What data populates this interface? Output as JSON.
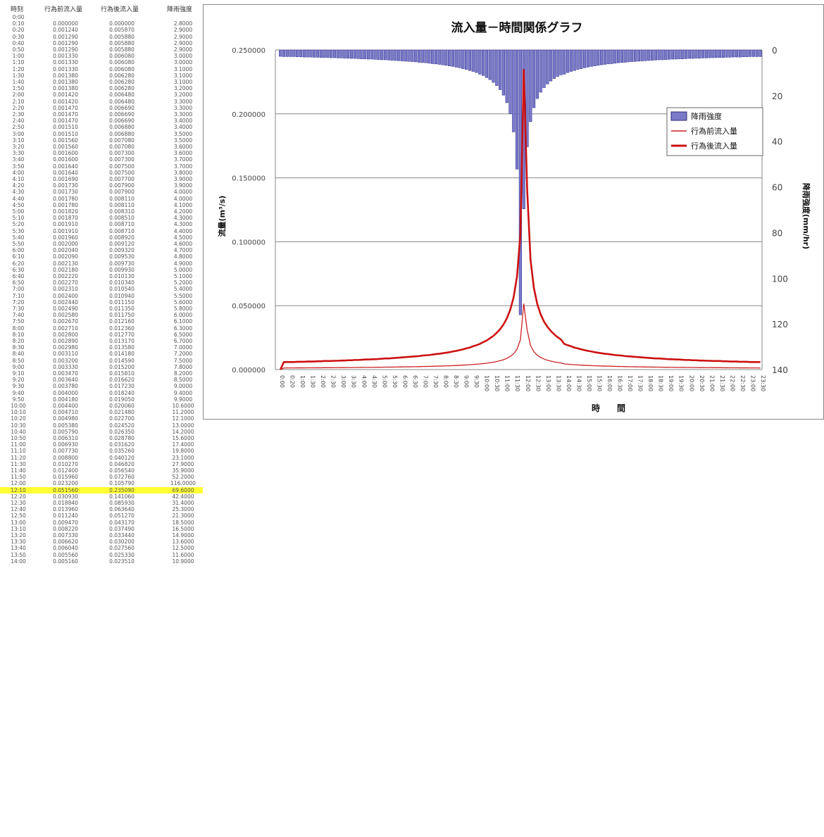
{
  "table": {
    "headers": [
      "時刻",
      "行為前流入量",
      "行為後流入量",
      "降雨強度"
    ],
    "highlight_time": "12:10",
    "rows": [
      [
        "0:00",
        "",
        "",
        ""
      ],
      [
        "0:10",
        "0.000000",
        "0.000000",
        "2.8000"
      ],
      [
        "0:20",
        "0.001240",
        "0.005870",
        "2.9000"
      ],
      [
        "0:30",
        "0.001290",
        "0.005880",
        "2.9000"
      ],
      [
        "0:40",
        "0.001290",
        "0.005880",
        "2.9000"
      ],
      [
        "0:50",
        "0.001290",
        "0.005880",
        "2.9000"
      ],
      [
        "1:00",
        "0.001330",
        "0.006080",
        "3.0000"
      ],
      [
        "1:10",
        "0.001330",
        "0.006080",
        "3.0000"
      ],
      [
        "1:20",
        "0.001330",
        "0.006080",
        "3.1000"
      ],
      [
        "1:30",
        "0.001380",
        "0.006280",
        "3.1000"
      ],
      [
        "1:40",
        "0.001380",
        "0.006280",
        "3.1000"
      ],
      [
        "1:50",
        "0.001380",
        "0.006280",
        "3.2000"
      ],
      [
        "2:00",
        "0.001420",
        "0.006480",
        "3.2000"
      ],
      [
        "2:10",
        "0.001420",
        "0.006480",
        "3.3000"
      ],
      [
        "2:20",
        "0.001470",
        "0.006690",
        "3.3000"
      ],
      [
        "2:30",
        "0.001470",
        "0.006690",
        "3.3000"
      ],
      [
        "2:40",
        "0.001470",
        "0.006690",
        "3.4000"
      ],
      [
        "2:50",
        "0.001510",
        "0.006880",
        "3.4000"
      ],
      [
        "3:00",
        "0.001510",
        "0.006880",
        "3.5000"
      ],
      [
        "3:10",
        "0.001560",
        "0.007080",
        "3.5000"
      ],
      [
        "3:20",
        "0.001560",
        "0.007080",
        "3.6000"
      ],
      [
        "3:30",
        "0.001600",
        "0.007300",
        "3.6000"
      ],
      [
        "3:40",
        "0.001600",
        "0.007300",
        "3.7000"
      ],
      [
        "3:50",
        "0.001640",
        "0.007500",
        "3.7000"
      ],
      [
        "4:00",
        "0.001640",
        "0.007500",
        "3.8000"
      ],
      [
        "4:10",
        "0.001690",
        "0.007700",
        "3.9000"
      ],
      [
        "4:20",
        "0.001730",
        "0.007900",
        "3.9000"
      ],
      [
        "4:30",
        "0.001730",
        "0.007900",
        "4.0000"
      ],
      [
        "4:40",
        "0.001780",
        "0.008110",
        "4.0000"
      ],
      [
        "4:50",
        "0.001780",
        "0.008110",
        "4.1000"
      ],
      [
        "5:00",
        "0.001820",
        "0.008310",
        "4.2000"
      ],
      [
        "5:10",
        "0.001870",
        "0.008510",
        "4.3000"
      ],
      [
        "5:20",
        "0.001910",
        "0.008710",
        "4.3000"
      ],
      [
        "5:30",
        "0.001910",
        "0.008710",
        "4.4000"
      ],
      [
        "5:40",
        "0.001960",
        "0.008920",
        "4.5000"
      ],
      [
        "5:50",
        "0.002000",
        "0.009120",
        "4.6000"
      ],
      [
        "6:00",
        "0.002040",
        "0.009320",
        "4.7000"
      ],
      [
        "6:10",
        "0.002090",
        "0.009530",
        "4.8000"
      ],
      [
        "6:20",
        "0.002130",
        "0.009730",
        "4.9000"
      ],
      [
        "6:30",
        "0.002180",
        "0.009930",
        "5.0000"
      ],
      [
        "6:40",
        "0.002220",
        "0.010130",
        "5.1000"
      ],
      [
        "6:50",
        "0.002270",
        "0.010340",
        "5.2000"
      ],
      [
        "7:00",
        "0.002310",
        "0.010540",
        "5.4000"
      ],
      [
        "7:10",
        "0.002400",
        "0.010940",
        "5.5000"
      ],
      [
        "7:20",
        "0.002440",
        "0.011150",
        "5.6000"
      ],
      [
        "7:30",
        "0.002490",
        "0.011350",
        "5.8000"
      ],
      [
        "7:40",
        "0.002580",
        "0.011750",
        "6.0000"
      ],
      [
        "7:50",
        "0.002670",
        "0.012160",
        "6.1000"
      ],
      [
        "8:00",
        "0.002710",
        "0.012360",
        "6.3000"
      ],
      [
        "8:10",
        "0.002800",
        "0.012770",
        "6.5000"
      ],
      [
        "8:20",
        "0.002890",
        "0.013170",
        "6.7000"
      ],
      [
        "8:30",
        "0.002980",
        "0.013580",
        "7.0000"
      ],
      [
        "8:40",
        "0.003110",
        "0.014180",
        "7.2000"
      ],
      [
        "8:50",
        "0.003200",
        "0.014590",
        "7.5000"
      ],
      [
        "9:00",
        "0.003330",
        "0.015200",
        "7.8000"
      ],
      [
        "9:10",
        "0.003470",
        "0.015810",
        "8.2000"
      ],
      [
        "9:20",
        "0.003640",
        "0.016620",
        "8.5000"
      ],
      [
        "9:30",
        "0.003780",
        "0.017230",
        "9.0000"
      ],
      [
        "9:40",
        "0.004000",
        "0.018240",
        "9.4000"
      ],
      [
        "9:50",
        "0.004180",
        "0.019050",
        "9.9000"
      ],
      [
        "10:00",
        "0.004400",
        "0.020060",
        "10.6000"
      ],
      [
        "10:10",
        "0.004710",
        "0.021480",
        "11.2000"
      ],
      [
        "10:20",
        "0.004980",
        "0.022700",
        "12.1000"
      ],
      [
        "10:30",
        "0.005380",
        "0.024520",
        "13.0000"
      ],
      [
        "10:40",
        "0.005790",
        "0.026350",
        "14.2000"
      ],
      [
        "10:50",
        "0.006310",
        "0.028780",
        "15.6000"
      ],
      [
        "11:00",
        "0.006930",
        "0.031620",
        "17.4000"
      ],
      [
        "11:10",
        "0.007730",
        "0.035260",
        "19.8000"
      ],
      [
        "11:20",
        "0.008800",
        "0.040120",
        "23.1000"
      ],
      [
        "11:30",
        "0.010270",
        "0.046820",
        "27.9000"
      ],
      [
        "11:40",
        "0.012400",
        "0.056540",
        "35.9000"
      ],
      [
        "11:50",
        "0.015960",
        "0.072760",
        "52.2000"
      ],
      [
        "12:00",
        "0.023200",
        "0.105790",
        "116.0000"
      ],
      [
        "12:10",
        "0.051560",
        "0.235090",
        "69.6000"
      ],
      [
        "12:20",
        "0.030930",
        "0.141060",
        "42.4000"
      ],
      [
        "12:30",
        "0.018840",
        "0.085930",
        "31.4000"
      ],
      [
        "12:40",
        "0.013960",
        "0.063640",
        "25.3000"
      ],
      [
        "12:50",
        "0.011240",
        "0.051270",
        "21.3000"
      ],
      [
        "13:00",
        "0.009470",
        "0.043170",
        "18.5000"
      ],
      [
        "13:10",
        "0.008220",
        "0.037490",
        "16.5000"
      ],
      [
        "13:20",
        "0.007330",
        "0.033440",
        "14.9000"
      ],
      [
        "13:30",
        "0.006620",
        "0.030200",
        "13.6000"
      ],
      [
        "13:40",
        "0.006040",
        "0.027560",
        "12.5000"
      ],
      [
        "13:50",
        "0.005560",
        "0.025330",
        "11.6000"
      ],
      [
        "14:00",
        "0.005160",
        "0.023510",
        "10.9000"
      ]
    ]
  },
  "chart_data": {
    "type": "bar+line",
    "title": "流入量－時間関係グラフ",
    "xlabel": "時　　間",
    "ylabel": "流量(m³/s)",
    "y2label": "降雨強度(mm/hr)",
    "ylim": [
      0,
      0.25
    ],
    "y2lim": [
      0,
      140
    ],
    "y2_inverted": true,
    "yticks": [
      "0.000000",
      "0.050000",
      "0.100000",
      "0.150000",
      "0.200000",
      "0.250000"
    ],
    "y2ticks": [
      "0",
      "20",
      "40",
      "60",
      "80",
      "100",
      "120",
      "140"
    ],
    "x_step_minutes": 10,
    "x_tick_labels": [
      "0:00",
      "0:20",
      "1:00",
      "1:30",
      "2:00",
      "2:30",
      "3:00",
      "3:30",
      "4:00",
      "4:30",
      "5:00",
      "5:30",
      "6:00",
      "6:30",
      "7:00",
      "7:30",
      "8:00",
      "8:30",
      "9:00",
      "9:30",
      "10:00",
      "10:30",
      "11:00",
      "11:30",
      "12:00",
      "12:30",
      "13:00",
      "13:30",
      "14:00",
      "14:30",
      "15:00",
      "15:30",
      "16:00",
      "16:30",
      "17:00",
      "17:30",
      "18:00",
      "18:30",
      "19:00",
      "19:30",
      "20:00",
      "20:30",
      "21:00",
      "21:30",
      "22:00",
      "22:30",
      "23:00",
      "23:30"
    ],
    "legend": [
      "降雨強度",
      "行為前流入量",
      "行為後流入量"
    ],
    "legend_position": "right",
    "grid": true,
    "colors": {
      "rain": "#3a3a9c",
      "rain_fill": "#7a7ac8",
      "before": "#cc2222",
      "after": "#cc1111"
    }
  }
}
